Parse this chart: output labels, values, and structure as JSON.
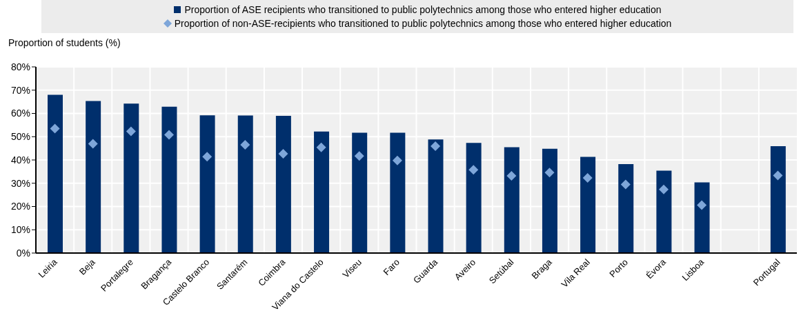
{
  "chart_data": {
    "type": "bar",
    "ylabel": "Proportion of students (%)",
    "categories": [
      "Leiria",
      "Beja",
      "Portalegre",
      "Bragança",
      "Castelo Branco",
      "Santarém",
      "Coimbra",
      "Viana do Castelo",
      "Viseu",
      "Faro",
      "Guarda",
      "Aveiro",
      "Setúbal",
      "Braga",
      "Vila Real",
      "Porto",
      "Évora",
      "Lisboa",
      null,
      "Portugal"
    ],
    "series": [
      {
        "name": "Proportion of ASE recipients who transitioned to public polytechnics among those who entered higher education",
        "color": "#002f6c",
        "values": [
          68,
          65.3,
          64.2,
          62.9,
          59.2,
          59.1,
          59,
          52.2,
          51.7,
          51.7,
          48.8,
          47.3,
          45.5,
          44.8,
          41.3,
          38.2,
          35.4,
          30.4,
          null,
          45.9
        ]
      },
      {
        "name": "Proportion of non-ASE-recipients who transitioned to public polytechnics among those who entered higher education",
        "type": "scatter",
        "color": "#7ea6d9",
        "marker": "diamond",
        "values": [
          53.5,
          47,
          52.3,
          50.8,
          41.4,
          46.5,
          42.7,
          45.4,
          41.7,
          39.8,
          45.9,
          35.8,
          33.2,
          34.6,
          32.3,
          29.5,
          27.3,
          20.6,
          null,
          33.3
        ]
      }
    ],
    "ylim": [
      0,
      80
    ],
    "yticks": [
      {
        "value": 0,
        "label": "0%"
      },
      {
        "value": 10,
        "label": "10%"
      },
      {
        "value": 20,
        "label": "20%"
      },
      {
        "value": 30,
        "label": "30%"
      },
      {
        "value": 40,
        "label": "40%"
      },
      {
        "value": 50,
        "label": "50%"
      },
      {
        "value": 60,
        "label": "60%"
      },
      {
        "value": 70,
        "label": "70%"
      },
      {
        "value": 80,
        "label": "80%"
      }
    ],
    "grid": true,
    "legend": "top"
  }
}
